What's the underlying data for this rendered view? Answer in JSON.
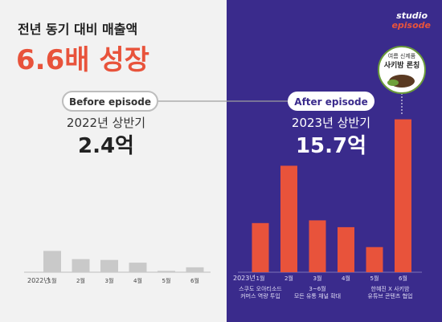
{
  "header": {
    "subtitle": "전년 동기 대비 매출액",
    "title": "6.6배 성장"
  },
  "brand": {
    "line1": "studio",
    "line2": "episode"
  },
  "colors": {
    "accent": "#e8533b",
    "left_bg": "#f2f2f2",
    "right_bg": "#3a2b8c",
    "left_bar": "#c9c9c9",
    "pill_border": "#bdbdbd",
    "dark_text": "#222222"
  },
  "left_panel": {
    "label": "Before episode",
    "period": "2022년 상반기",
    "total": "2.4억"
  },
  "right_panel": {
    "label": "After episode",
    "period": "2023년 상반기",
    "total": "15.7억"
  },
  "product_badge": {
    "line1": "여름 신제품",
    "line2": "사키밤 론칭"
  },
  "chart_data": [
    {
      "type": "bar",
      "year_label": "2022년",
      "categories": [
        "1월",
        "2월",
        "3월",
        "4월",
        "5월",
        "6월"
      ],
      "values": [
        0.78,
        0.48,
        0.45,
        0.35,
        0.05,
        0.18
      ],
      "annotations": []
    },
    {
      "type": "bar",
      "year_label": "2023년",
      "categories": [
        "1월",
        "2월",
        "3월",
        "4월",
        "5월",
        "6월"
      ],
      "values": [
        1.8,
        3.9,
        1.9,
        1.65,
        0.92,
        5.6
      ],
      "annotations": [
        {
          "category": "1월",
          "lines": [
            "스쿠도 오아티소드",
            "커머스 역량 투입"
          ]
        },
        {
          "category": "3월",
          "lines": [
            "3~6월",
            "모든 유통 채널 확대"
          ]
        },
        {
          "category": "6월",
          "lines": [
            "한혜진 X 사키밤",
            "유튜브 콘텐츠 협업"
          ]
        }
      ]
    }
  ]
}
